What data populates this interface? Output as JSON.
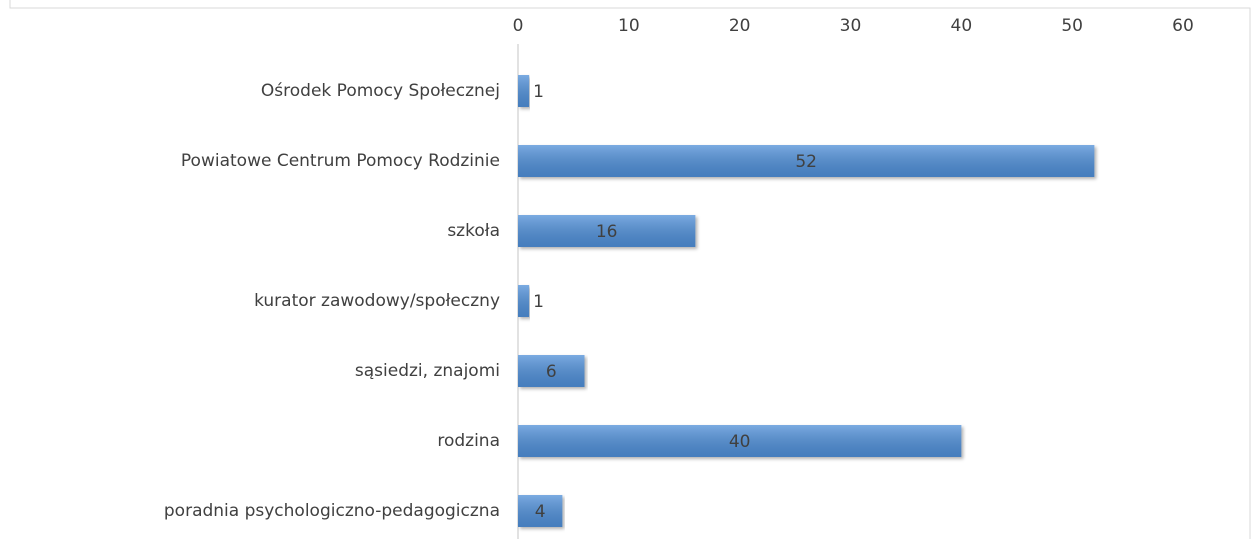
{
  "chart_data": {
    "type": "barh",
    "categories": [
      "Ośrodek Pomocy Społecznej",
      "Powiatowe Centrum Pomocy Rodzinie",
      "szkoła",
      "kurator zawodowy/społeczny",
      "sąsiedzi, znajomi",
      "rodzina",
      "poradnia psychologiczno-pedagogiczna"
    ],
    "values": [
      1,
      52,
      16,
      1,
      6,
      40,
      4
    ],
    "color": "#4f8fd8",
    "xlim": [
      0,
      60
    ],
    "xticks": [
      0,
      10,
      20,
      30,
      40,
      50,
      60
    ]
  }
}
